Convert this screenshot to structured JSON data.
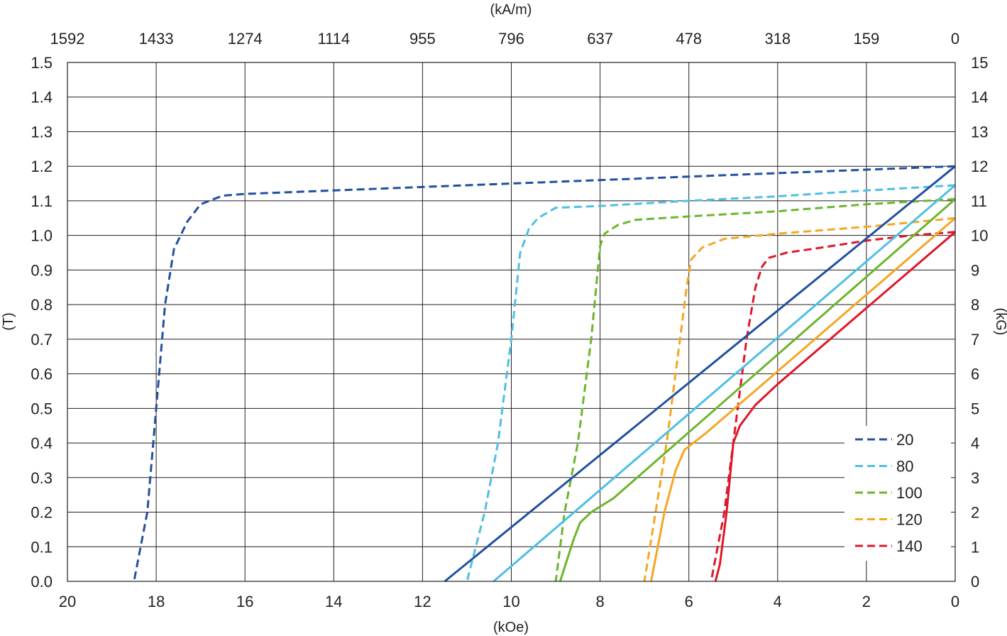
{
  "chart_data": {
    "type": "line",
    "x_axis": {
      "label": "(kOe)",
      "range": [
        20,
        0
      ],
      "ticks": [
        20,
        18,
        16,
        14,
        12,
        10,
        8,
        6,
        4,
        2,
        0
      ],
      "tick_labels": [
        "20",
        "18",
        "16",
        "14",
        "12",
        "10",
        "8",
        "6",
        "4",
        "2",
        "0"
      ]
    },
    "x2_axis": {
      "label": "(kA/m)",
      "tick_labels": [
        "1592",
        "1433",
        "1274",
        "1114",
        "955",
        "796",
        "637",
        "478",
        "318",
        "159",
        "0"
      ]
    },
    "y_axis": {
      "label": "(T)",
      "range": [
        0,
        1.5
      ],
      "ticks": [
        0,
        0.1,
        0.2,
        0.3,
        0.4,
        0.5,
        0.6,
        0.7,
        0.8,
        0.9,
        1.0,
        1.1,
        1.2,
        1.3,
        1.4,
        1.5
      ],
      "tick_labels": [
        "0.0",
        "0.1",
        "0.2",
        "0.3",
        "0.4",
        "0.5",
        "0.6",
        "0.7",
        "0.8",
        "0.9",
        "1.0",
        "1.1",
        "1.2",
        "1.3",
        "1.4",
        "1.5"
      ]
    },
    "y2_axis": {
      "label": "(kG)",
      "tick_labels": [
        "0",
        "1",
        "2",
        "3",
        "4",
        "5",
        "6",
        "7",
        "8",
        "9",
        "10",
        "11",
        "12",
        "13",
        "14",
        "15"
      ]
    },
    "grid": true,
    "legend": {
      "position": "bottom-right",
      "items": [
        {
          "label": "20",
          "color": "#2150a0"
        },
        {
          "label": "80",
          "color": "#4ebfe4"
        },
        {
          "label": "100",
          "color": "#6cb52d"
        },
        {
          "label": "120",
          "color": "#f5a623"
        },
        {
          "label": "140",
          "color": "#e0172a"
        }
      ]
    },
    "series": [
      {
        "name": "20",
        "kind": "J",
        "color": "#2150a0",
        "dashed": true,
        "points": [
          [
            0,
            1.2
          ],
          [
            4,
            1.18
          ],
          [
            8,
            1.16
          ],
          [
            12,
            1.14
          ],
          [
            16,
            1.12
          ],
          [
            16.5,
            1.115
          ],
          [
            17,
            1.09
          ],
          [
            17.3,
            1.04
          ],
          [
            17.6,
            0.96
          ],
          [
            17.8,
            0.8
          ],
          [
            18.0,
            0.5
          ],
          [
            18.2,
            0.2
          ],
          [
            18.5,
            0.0
          ]
        ]
      },
      {
        "name": "80",
        "kind": "J",
        "color": "#4ebfe4",
        "dashed": true,
        "points": [
          [
            0,
            1.145
          ],
          [
            2,
            1.13
          ],
          [
            4,
            1.113
          ],
          [
            6,
            1.1
          ],
          [
            8,
            1.085
          ],
          [
            9,
            1.08
          ],
          [
            9.4,
            1.05
          ],
          [
            9.6,
            1.02
          ],
          [
            9.8,
            0.95
          ],
          [
            10.0,
            0.7
          ],
          [
            10.3,
            0.4
          ],
          [
            10.6,
            0.2
          ],
          [
            11.0,
            0.0
          ]
        ]
      },
      {
        "name": "100",
        "kind": "J",
        "color": "#6cb52d",
        "dashed": true,
        "points": [
          [
            0,
            1.105
          ],
          [
            2,
            1.09
          ],
          [
            4,
            1.07
          ],
          [
            6,
            1.055
          ],
          [
            7.2,
            1.045
          ],
          [
            7.6,
            1.03
          ],
          [
            7.9,
            1.005
          ],
          [
            8.0,
            0.97
          ],
          [
            8.2,
            0.7
          ],
          [
            8.5,
            0.4
          ],
          [
            8.8,
            0.2
          ],
          [
            9.0,
            0.0
          ]
        ]
      },
      {
        "name": "120",
        "kind": "J",
        "color": "#f5a623",
        "dashed": true,
        "points": [
          [
            0,
            1.05
          ],
          [
            2,
            1.025
          ],
          [
            4,
            1.005
          ],
          [
            5.2,
            0.99
          ],
          [
            5.7,
            0.965
          ],
          [
            5.95,
            0.93
          ],
          [
            6.05,
            0.85
          ],
          [
            6.2,
            0.7
          ],
          [
            6.5,
            0.4
          ],
          [
            6.75,
            0.2
          ],
          [
            7.0,
            0.0
          ]
        ]
      },
      {
        "name": "140",
        "kind": "J",
        "color": "#e0172a",
        "dashed": true,
        "points": [
          [
            0,
            1.01
          ],
          [
            1,
            1.0
          ],
          [
            2,
            0.985
          ],
          [
            3,
            0.965
          ],
          [
            3.8,
            0.95
          ],
          [
            4.2,
            0.935
          ],
          [
            4.35,
            0.91
          ],
          [
            4.5,
            0.85
          ],
          [
            4.7,
            0.7
          ],
          [
            4.9,
            0.5
          ],
          [
            5.2,
            0.2
          ],
          [
            5.5,
            0.0
          ]
        ]
      },
      {
        "name": "20",
        "kind": "B",
        "color": "#2150a0",
        "dashed": false,
        "points": [
          [
            0,
            1.2
          ],
          [
            11.5,
            0.0
          ]
        ]
      },
      {
        "name": "80",
        "kind": "B",
        "color": "#4ebfe4",
        "dashed": false,
        "points": [
          [
            0,
            1.145
          ],
          [
            10.4,
            0.0
          ]
        ]
      },
      {
        "name": "100",
        "kind": "B",
        "color": "#6cb52d",
        "dashed": false,
        "points": [
          [
            0,
            1.105
          ],
          [
            7.7,
            0.24
          ],
          [
            8.2,
            0.2
          ],
          [
            8.45,
            0.17
          ],
          [
            8.6,
            0.12
          ],
          [
            8.9,
            0.0
          ]
        ]
      },
      {
        "name": "120",
        "kind": "B",
        "color": "#f5a623",
        "dashed": false,
        "points": [
          [
            0,
            1.05
          ],
          [
            5.6,
            0.43
          ],
          [
            6.1,
            0.38
          ],
          [
            6.3,
            0.32
          ],
          [
            6.55,
            0.2
          ],
          [
            6.7,
            0.1
          ],
          [
            6.85,
            0.0
          ]
        ]
      },
      {
        "name": "140",
        "kind": "B",
        "color": "#e0172a",
        "dashed": false,
        "points": [
          [
            0,
            1.01
          ],
          [
            4,
            0.57
          ],
          [
            4.5,
            0.51
          ],
          [
            4.85,
            0.45
          ],
          [
            5.0,
            0.4
          ],
          [
            5.15,
            0.2
          ],
          [
            5.3,
            0.05
          ],
          [
            5.4,
            0.0
          ]
        ]
      }
    ]
  }
}
